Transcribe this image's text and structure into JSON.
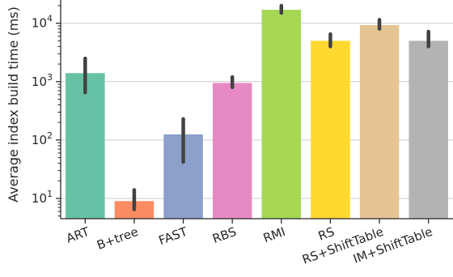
{
  "chart_data": {
    "type": "bar",
    "title": "",
    "xlabel": "",
    "ylabel": "Average index build time (ms)",
    "yscale": "log",
    "ylim": [
      4.5,
      25000
    ],
    "grid": {
      "y": true,
      "x": false
    },
    "y_ticks": [
      {
        "value": 10,
        "base": "10",
        "exp": "1"
      },
      {
        "value": 100,
        "base": "10",
        "exp": "2"
      },
      {
        "value": 1000,
        "base": "10",
        "exp": "3"
      },
      {
        "value": 10000,
        "base": "10",
        "exp": "4"
      }
    ],
    "categories": [
      "ART",
      "B+tree",
      "FAST",
      "RBS",
      "RMI",
      "RS",
      "RS+ShiftTable",
      "IM+ShiftTable"
    ],
    "values": [
      1400,
      9,
      125,
      950,
      17000,
      5000,
      9300,
      5000
    ],
    "error_low": [
      650,
      6.5,
      42,
      800,
      15000,
      4000,
      8000,
      4000
    ],
    "error_high": [
      2500,
      14,
      230,
      1200,
      20000,
      6500,
      11500,
      7200
    ],
    "colors": [
      "#66c2a5",
      "#fc8d62",
      "#8da0cb",
      "#e78ac3",
      "#a6d854",
      "#ffd92f",
      "#e5c494",
      "#b3b3b3"
    ],
    "error_color": "#424242"
  }
}
